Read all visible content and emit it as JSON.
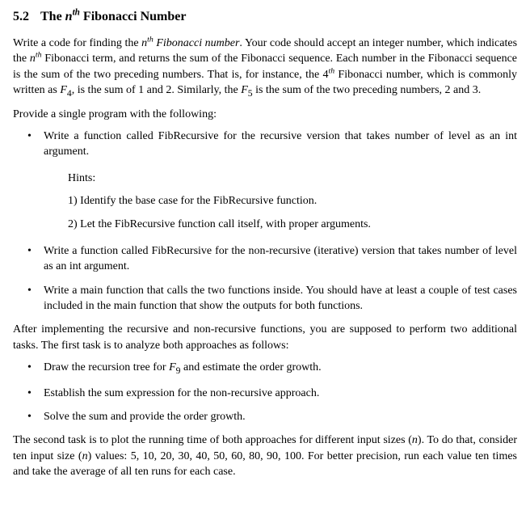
{
  "heading": {
    "number": "5.2",
    "title_html": "The <span class=\"ital\">n<sup class=\"ord\">th</sup></span> Fibonacci Number"
  },
  "para1_html": "Write a code for finding the <span class=\"ital\">n<sup class=\"ord\">th</sup></span> <span class=\"ital\">Fibonacci number</span>. Your code should accept an integer number, which indicates the <span class=\"ital\">n<sup class=\"ord\">th</sup></span> Fibonacci term, and returns the sum of the Fibonacci sequence. Each number in the Fibonacci sequence is the sum of the two preceding numbers. That is, for instance, the 4<span class=\"ital\"><sup class=\"ord\">th</sup></span> Fibonacci number, which is commonly written as <span class=\"sub-i\">F</span><sub>4</sub>, is the sum of 1 and 2. Similarly, the <span class=\"sub-i\">F</span><sub>5</sub> is the sum of the two preceding numbers, 2 and 3.",
  "para2": "Provide a single program with the following:",
  "list1": {
    "item1": "Write a function called FibRecursive for the recursive version that takes number of level as an int argument.",
    "hints_title": "Hints:",
    "hint1": "1) Identify the base case for the FibRecursive function.",
    "hint2": "2) Let the FibRecursive function call itself, with proper arguments.",
    "item2": "Write a function called FibRecursive for the non-recursive (iterative) version that takes number of level as an int argument.",
    "item3": "Write a main function that calls the two functions inside. You should have at least a couple of test cases included in the main function that show the outputs for both functions."
  },
  "para3": "After implementing the recursive and non-recursive functions, you are supposed to perform two additional tasks. The first task is to analyze both approaches as follows:",
  "list2": {
    "item1_html": "Draw the recursion tree for <span class=\"sub-i\">F</span><sub>9</sub> and estimate the order growth.",
    "item2": "Establish the sum expression for the non-recursive approach.",
    "item3": "Solve the sum and provide the order growth."
  },
  "para4_html": "The second task is to plot the running time of both approaches for different input sizes (<span class=\"sub-i\">n</span>). To do that, consider ten input size (<span class=\"sub-i\">n</span>) values:  5, 10, 20, 30, 40, 50, 60, 80, 90, 100.  For better precision, run each value ten times and take the average of all ten runs for each case."
}
